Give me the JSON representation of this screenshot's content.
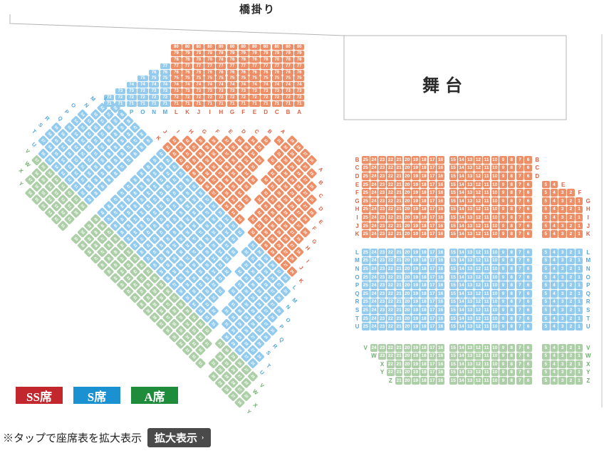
{
  "stage": {
    "label": "舞台"
  },
  "bridge": {
    "label": "橋掛り"
  },
  "legend": [
    {
      "label": "SS席",
      "color": "#c1272d"
    },
    {
      "label": "S席",
      "color": "#1b91d1"
    },
    {
      "label": "A席",
      "color": "#1f8c3c"
    }
  ],
  "note": {
    "text": "※タップで座席表を拡大表示",
    "button_label": "拡大表示",
    "button_arrow": "›"
  },
  "colors": {
    "ss_seat": "#ee8e66",
    "s_seat": "#92cbee",
    "a_seat": "#adcfa8",
    "ss_label": "#dd6247",
    "s_label": "#55a8dc",
    "a_label": "#6fae6f",
    "outline": "#b4b4b4"
  },
  "side_block": {
    "description": "side-facing block, columns lettered right-to-left, seats numbered 71 (bottom) to 80 (top)",
    "bottom_number": 71,
    "columns_right_to_left": [
      {
        "letter": "A",
        "cls": "ss",
        "top_number": 80
      },
      {
        "letter": "B",
        "cls": "ss",
        "top_number": 80
      },
      {
        "letter": "C",
        "cls": "ss",
        "top_number": 80
      },
      {
        "letter": "D",
        "cls": "ss",
        "top_number": 80
      },
      {
        "letter": "E",
        "cls": "ss",
        "top_number": 80
      },
      {
        "letter": "F",
        "cls": "ss",
        "top_number": 80
      },
      {
        "letter": "G",
        "cls": "ss",
        "top_number": 80
      },
      {
        "letter": "H",
        "cls": "ss",
        "top_number": 80
      },
      {
        "letter": "I",
        "cls": "ss",
        "top_number": 80
      },
      {
        "letter": "J",
        "cls": "ss",
        "top_number": 80
      },
      {
        "letter": "K",
        "cls": "ss",
        "top_number": 80
      },
      {
        "letter": "L",
        "cls": "ss",
        "top_number": 80
      },
      {
        "letter": "M",
        "cls": "s",
        "top_number": 77
      },
      {
        "letter": "N",
        "cls": "s",
        "top_number": 76
      },
      {
        "letter": "O",
        "cls": "s",
        "top_number": 75
      },
      {
        "letter": "P",
        "cls": "s",
        "top_number": 74
      },
      {
        "letter": "Q",
        "cls": "s",
        "top_number": 73
      },
      {
        "letter": "R",
        "cls": "s",
        "top_number": 72
      }
    ]
  },
  "front_block": {
    "description": "front-facing block, seat number runs listed high-to-low, left to right on screen",
    "rows": [
      {
        "letter": "B",
        "cls": "ss",
        "runs": [
          [
            25,
            16
          ],
          [
            15,
            6
          ]
        ]
      },
      {
        "letter": "C",
        "cls": "ss",
        "runs": [
          [
            25,
            16
          ],
          [
            15,
            6
          ]
        ]
      },
      {
        "letter": "D",
        "cls": "ss",
        "runs": [
          [
            25,
            16
          ],
          [
            15,
            6
          ]
        ]
      },
      {
        "letter": "E",
        "cls": "ss",
        "runs": [
          [
            25,
            16
          ],
          [
            15,
            6
          ],
          [
            5,
            4
          ]
        ]
      },
      {
        "letter": "F",
        "cls": "ss",
        "runs": [
          [
            25,
            16
          ],
          [
            15,
            6
          ],
          [
            5,
            2
          ]
        ]
      },
      {
        "letter": "G",
        "cls": "ss",
        "runs": [
          [
            25,
            16
          ],
          [
            15,
            6
          ],
          [
            5,
            1
          ]
        ]
      },
      {
        "letter": "H",
        "cls": "ss",
        "runs": [
          [
            25,
            16
          ],
          [
            15,
            6
          ],
          [
            5,
            1
          ]
        ]
      },
      {
        "letter": "I",
        "cls": "ss",
        "runs": [
          [
            25,
            16
          ],
          [
            15,
            6
          ],
          [
            5,
            1
          ]
        ]
      },
      {
        "letter": "J",
        "cls": "ss",
        "runs": [
          [
            25,
            16
          ],
          [
            15,
            6
          ],
          [
            5,
            1
          ]
        ]
      },
      {
        "letter": "K",
        "cls": "ss",
        "runs": [
          [
            25,
            16
          ],
          [
            15,
            6
          ],
          [
            5,
            1
          ]
        ]
      },
      {
        "letter": "L",
        "cls": "s",
        "runs": [
          [
            25,
            16
          ],
          [
            15,
            6
          ],
          [
            5,
            1
          ]
        ]
      },
      {
        "letter": "M",
        "cls": "s",
        "runs": [
          [
            25,
            16
          ],
          [
            15,
            6
          ],
          [
            5,
            1
          ]
        ]
      },
      {
        "letter": "N",
        "cls": "s",
        "runs": [
          [
            25,
            16
          ],
          [
            15,
            6
          ],
          [
            5,
            1
          ]
        ]
      },
      {
        "letter": "O",
        "cls": "s",
        "runs": [
          [
            25,
            16
          ],
          [
            15,
            6
          ],
          [
            5,
            1
          ]
        ]
      },
      {
        "letter": "P",
        "cls": "s",
        "runs": [
          [
            25,
            16
          ],
          [
            15,
            6
          ],
          [
            5,
            1
          ]
        ]
      },
      {
        "letter": "Q",
        "cls": "s",
        "runs": [
          [
            25,
            16
          ],
          [
            15,
            6
          ],
          [
            5,
            1
          ]
        ]
      },
      {
        "letter": "R",
        "cls": "s",
        "runs": [
          [
            25,
            16
          ],
          [
            15,
            6
          ],
          [
            5,
            1
          ]
        ]
      },
      {
        "letter": "S",
        "cls": "s",
        "runs": [
          [
            25,
            16
          ],
          [
            15,
            6
          ],
          [
            5,
            1
          ]
        ]
      },
      {
        "letter": "T",
        "cls": "s",
        "runs": [
          [
            25,
            16
          ],
          [
            15,
            6
          ],
          [
            5,
            1
          ]
        ]
      },
      {
        "letter": "U",
        "cls": "s",
        "runs": [
          [
            25,
            16
          ],
          [
            15,
            6
          ],
          [
            5,
            1
          ]
        ]
      },
      {
        "letter": "V",
        "cls": "a",
        "runs": [
          [
            24,
            16
          ],
          [
            15,
            6
          ],
          [
            5,
            1
          ]
        ]
      },
      {
        "letter": "W",
        "cls": "a",
        "runs": [
          [
            23,
            16
          ],
          [
            15,
            6
          ],
          [
            5,
            1
          ]
        ]
      },
      {
        "letter": "X",
        "cls": "a",
        "runs": [
          [
            22,
            16
          ],
          [
            15,
            6
          ],
          [
            5,
            1
          ]
        ]
      },
      {
        "letter": "Y",
        "cls": "a",
        "runs": [
          [
            22,
            16
          ],
          [
            15,
            6
          ],
          [
            5,
            1
          ]
        ]
      },
      {
        "letter": "Z",
        "cls": "a",
        "runs": [
          [
            21,
            16
          ],
          [
            15,
            6
          ],
          [
            5,
            1
          ]
        ]
      }
    ]
  },
  "diagonal_block": {
    "description": "corner section rotated 45deg; rows lettered A-Y with stair-stepped aisles; seat numbers continue from 26 at the stage-side end of each row (numerals approximate - illegible at source resolution)",
    "stage_side_start_number": 26,
    "rows": [
      {
        "letter": "A",
        "cls": "ss",
        "from": 31,
        "to": 34
      },
      {
        "letter": "B",
        "cls": "ss",
        "from": 30,
        "to": 35
      },
      {
        "letter": "C",
        "cls": "ss",
        "from": 29,
        "to": 36
      },
      {
        "letter": "D",
        "cls": "ss",
        "from": 28,
        "to": 37
      },
      {
        "letter": "E",
        "cls": "ss",
        "from": 27,
        "to": 38
      },
      {
        "letter": "F",
        "cls": "ss",
        "from": 26,
        "to": 38
      },
      {
        "letter": "G",
        "cls": "ss",
        "from": 25,
        "to": 39
      },
      {
        "letter": "H",
        "cls": "ss",
        "from": 24,
        "to": 39
      },
      {
        "letter": "I",
        "cls": "ss",
        "from": 23,
        "to": 40
      },
      {
        "letter": "J",
        "cls": "ss",
        "from": 22,
        "to": 40
      },
      {
        "letter": "K",
        "cls": "ss",
        "from": 22,
        "to": 41
      },
      {
        "letter": "L",
        "cls": "s",
        "from": 15,
        "to": 41
      },
      {
        "letter": "M",
        "cls": "s",
        "from": 14,
        "to": 42
      },
      {
        "letter": "N",
        "cls": "s",
        "from": 14,
        "to": 42
      },
      {
        "letter": "O",
        "cls": "s",
        "from": 13,
        "to": 43
      },
      {
        "letter": "P",
        "cls": "s",
        "from": 13,
        "to": 43
      },
      {
        "letter": "Q",
        "cls": "s",
        "from": 13,
        "to": 44
      },
      {
        "letter": "R",
        "cls": "s",
        "from": 12,
        "to": 44
      },
      {
        "letter": "S",
        "cls": "s",
        "from": 12,
        "to": 44
      },
      {
        "letter": "T",
        "cls": "s",
        "from": 12,
        "to": 45
      },
      {
        "letter": "U",
        "cls": "s",
        "from": 13,
        "to": 45
      },
      {
        "letter": "V",
        "cls": "a",
        "from": 13,
        "to": 46
      },
      {
        "letter": "W",
        "cls": "a",
        "from": 14,
        "to": 46
      },
      {
        "letter": "X",
        "cls": "a",
        "from": 14,
        "to": 47
      },
      {
        "letter": "Y",
        "cls": "a",
        "from": 15,
        "to": 47
      }
    ]
  }
}
